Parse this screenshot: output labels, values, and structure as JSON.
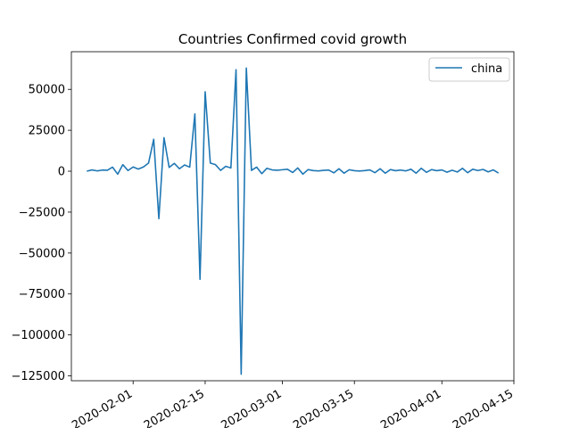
{
  "chart_data": {
    "type": "line",
    "title": "Countries Confirmed covid growth",
    "xlabel": "",
    "ylabel": "",
    "x_axis": {
      "type": "date",
      "range": [
        "2020-01-20",
        "2020-04-15"
      ],
      "ticks": [
        "2020-02-01",
        "2020-02-15",
        "2020-03-01",
        "2020-03-15",
        "2020-04-01",
        "2020-04-15"
      ]
    },
    "y_axis": {
      "range": [
        -128000,
        73000
      ],
      "ticks": [
        50000,
        25000,
        0,
        -25000,
        -50000,
        -75000,
        -100000,
        -125000
      ],
      "tick_labels": [
        "50000",
        "25000",
        "0",
        "−25000",
        "−50000",
        "−75000",
        "−100000",
        "−125000"
      ]
    },
    "grid": false,
    "legend": {
      "placement": "top-right"
    },
    "series": [
      {
        "name": "china",
        "color": "#1f77b4",
        "points": [
          [
            "2020-01-23",
            0
          ],
          [
            "2020-01-24",
            800
          ],
          [
            "2020-01-25",
            200
          ],
          [
            "2020-01-26",
            700
          ],
          [
            "2020-01-27",
            600
          ],
          [
            "2020-01-28",
            2500
          ],
          [
            "2020-01-29",
            -1800
          ],
          [
            "2020-01-30",
            4000
          ],
          [
            "2020-01-31",
            400
          ],
          [
            "2020-02-01",
            2600
          ],
          [
            "2020-02-02",
            1300
          ],
          [
            "2020-02-03",
            2600
          ],
          [
            "2020-02-04",
            5000
          ],
          [
            "2020-02-05",
            19500
          ],
          [
            "2020-02-06",
            -29000
          ],
          [
            "2020-02-07",
            20500
          ],
          [
            "2020-02-08",
            2300
          ],
          [
            "2020-02-09",
            4800
          ],
          [
            "2020-02-10",
            1500
          ],
          [
            "2020-02-11",
            3800
          ],
          [
            "2020-02-12",
            2500
          ],
          [
            "2020-02-13",
            35000
          ],
          [
            "2020-02-14",
            -66000
          ],
          [
            "2020-02-15",
            48500
          ],
          [
            "2020-02-16",
            5000
          ],
          [
            "2020-02-17",
            4000
          ],
          [
            "2020-02-18",
            500
          ],
          [
            "2020-02-19",
            3000
          ],
          [
            "2020-02-20",
            2000
          ],
          [
            "2020-02-21",
            62000
          ],
          [
            "2020-02-22",
            -124000
          ],
          [
            "2020-02-23",
            63000
          ],
          [
            "2020-02-24",
            500
          ],
          [
            "2020-02-25",
            2500
          ],
          [
            "2020-02-26",
            -1500
          ],
          [
            "2020-02-27",
            1800
          ],
          [
            "2020-02-28",
            800
          ],
          [
            "2020-02-29",
            600
          ],
          [
            "2020-03-01",
            900
          ],
          [
            "2020-03-02",
            1200
          ],
          [
            "2020-03-03",
            -800
          ],
          [
            "2020-03-04",
            2000
          ],
          [
            "2020-03-05",
            -1800
          ],
          [
            "2020-03-06",
            1000
          ],
          [
            "2020-03-07",
            400
          ],
          [
            "2020-03-08",
            200
          ],
          [
            "2020-03-09",
            500
          ],
          [
            "2020-03-10",
            700
          ],
          [
            "2020-03-11",
            -1000
          ],
          [
            "2020-03-12",
            1500
          ],
          [
            "2020-03-13",
            -1200
          ],
          [
            "2020-03-14",
            900
          ],
          [
            "2020-03-15",
            300
          ],
          [
            "2020-03-16",
            100
          ],
          [
            "2020-03-17",
            400
          ],
          [
            "2020-03-18",
            800
          ],
          [
            "2020-03-19",
            -900
          ],
          [
            "2020-03-20",
            1500
          ],
          [
            "2020-03-21",
            -1200
          ],
          [
            "2020-03-22",
            1000
          ],
          [
            "2020-03-23",
            300
          ],
          [
            "2020-03-24",
            700
          ],
          [
            "2020-03-25",
            200
          ],
          [
            "2020-03-26",
            1200
          ],
          [
            "2020-03-27",
            -1200
          ],
          [
            "2020-03-28",
            1800
          ],
          [
            "2020-03-29",
            -700
          ],
          [
            "2020-03-30",
            1000
          ],
          [
            "2020-03-31",
            300
          ],
          [
            "2020-04-01",
            800
          ],
          [
            "2020-04-02",
            -600
          ],
          [
            "2020-04-03",
            600
          ],
          [
            "2020-04-04",
            -500
          ],
          [
            "2020-04-05",
            1800
          ],
          [
            "2020-04-06",
            -900
          ],
          [
            "2020-04-07",
            1200
          ],
          [
            "2020-04-08",
            400
          ],
          [
            "2020-04-09",
            1100
          ],
          [
            "2020-04-10",
            -400
          ],
          [
            "2020-04-11",
            800
          ],
          [
            "2020-04-12",
            -1100
          ]
        ]
      }
    ]
  }
}
